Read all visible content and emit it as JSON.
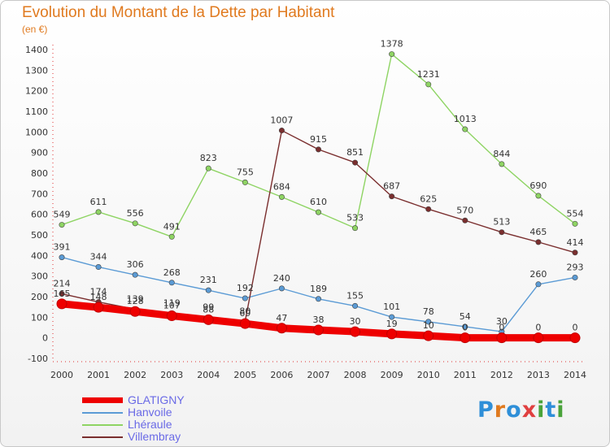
{
  "header": {
    "title": "Evolution du Montant de la Dette par Habitant",
    "unit": "(en €)"
  },
  "brand": {
    "letters": [
      "P",
      "r",
      "o",
      "x",
      "i",
      "t",
      "i"
    ],
    "colors": [
      "#2f8fd8",
      "#e07a1f",
      "#2f8fd8",
      "#e04040",
      "#4aa33a",
      "#2f8fd8",
      "#4aa33a"
    ]
  },
  "chart_data": {
    "type": "line",
    "x": [
      "2000",
      "2001",
      "2002",
      "2003",
      "2004",
      "2005",
      "2006",
      "2007",
      "2008",
      "2009",
      "2010",
      "2011",
      "2012",
      "2013",
      "2014"
    ],
    "ylim": [
      -100,
      1400
    ],
    "yticks": [
      -100,
      0,
      100,
      200,
      300,
      400,
      500,
      600,
      700,
      800,
      900,
      1000,
      1100,
      1200,
      1300,
      1400
    ],
    "grid": false,
    "legend_position": "bottom-left",
    "series": [
      {
        "name": "GLATIGNY",
        "color": "#ee0000",
        "values": [
          165,
          148,
          128,
          107,
          88,
          69,
          47,
          38,
          30,
          19,
          10,
          0,
          0,
          0,
          0
        ],
        "labels": [
          "165",
          "148",
          "128",
          "107",
          "88",
          "69",
          "47",
          "38",
          "30",
          "19",
          "10",
          "0",
          "0",
          "0",
          "0"
        ]
      },
      {
        "name": "Hanvoile",
        "color": "#5b9bd5",
        "values": [
          391,
          344,
          306,
          268,
          231,
          192,
          240,
          189,
          155,
          101,
          78,
          54,
          30,
          260,
          293
        ],
        "labels": [
          "391",
          "344",
          "306",
          "268",
          "231",
          "192",
          "240",
          "189",
          "155",
          "101",
          "78",
          "54",
          "30",
          "260",
          "293"
        ]
      },
      {
        "name": "Lhéraule",
        "color": "#8ed463",
        "values": [
          549,
          611,
          556,
          491,
          823,
          755,
          684,
          610,
          533,
          1378,
          1231,
          1013,
          844,
          690,
          554
        ],
        "labels": [
          "549",
          "611",
          "556",
          "491",
          "823",
          "755",
          "684",
          "610",
          "533",
          "1378",
          "1231",
          "1013",
          "844",
          "690",
          "554"
        ]
      },
      {
        "name": "Villembray",
        "color": "#7a2e2e",
        "values": [
          214,
          174,
          139,
          119,
          99,
          80,
          1007,
          915,
          851,
          687,
          625,
          570,
          513,
          465,
          414
        ],
        "labels": [
          "214",
          "174",
          "139",
          "119",
          "99",
          "80",
          "1007",
          "915",
          "851",
          "687",
          "625",
          "570",
          "513",
          "465",
          "414"
        ]
      }
    ]
  }
}
